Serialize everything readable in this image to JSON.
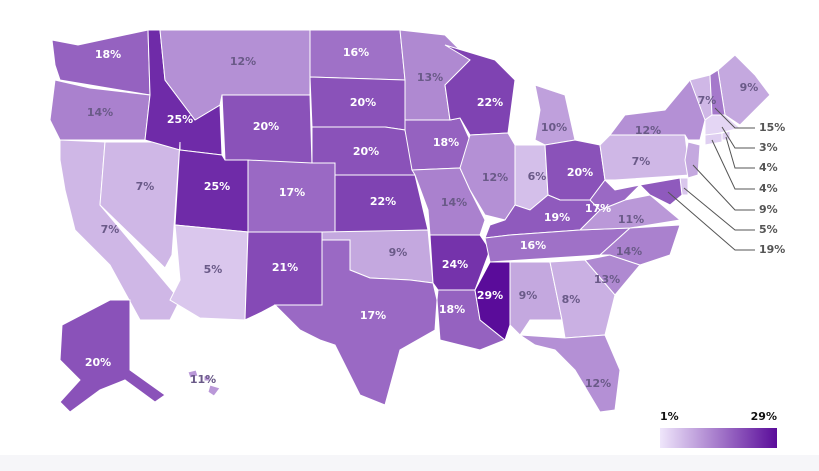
{
  "chart_data": {
    "type": "choropleth",
    "values": [
      18,
      14,
      7,
      7,
      25,
      12,
      20,
      25,
      5,
      17,
      21,
      16,
      20,
      20,
      22,
      9,
      17,
      13,
      18,
      14,
      24,
      18,
      22,
      10,
      12,
      6,
      20,
      19,
      16,
      29,
      9,
      8,
      12,
      13,
      14,
      11,
      17,
      7,
      12,
      7,
      9,
      15,
      3,
      4,
      4,
      9,
      5,
      19,
      20,
      11
    ],
    "value_labels": [
      "18%",
      "14%",
      "7%",
      "7%",
      "25%",
      "12%",
      "20%",
      "25%",
      "5%",
      "17%",
      "21%",
      "16%",
      "20%",
      "20%",
      "22%",
      "9%",
      "17%",
      "13%",
      "18%",
      "14%",
      "24%",
      "18%",
      "22%",
      "10%",
      "12%",
      "6%",
      "20%",
      "19%",
      "16%",
      "29%",
      "9%",
      "8%",
      "12%",
      "13%",
      "14%",
      "11%",
      "17%",
      "7%",
      "12%",
      "7%",
      "9%",
      "15%",
      "3%",
      "4%",
      "4%",
      "9%",
      "5%",
      "19%",
      "20%",
      "11%"
    ],
    "colors": [
      "#efe6fb",
      "#5a0c9a"
    ],
    "clim": [
      1,
      29
    ],
    "cticks": [
      {
        "value": 1,
        "label": "1%"
      },
      {
        "value": 29,
        "label": "29%"
      }
    ]
  }
}
